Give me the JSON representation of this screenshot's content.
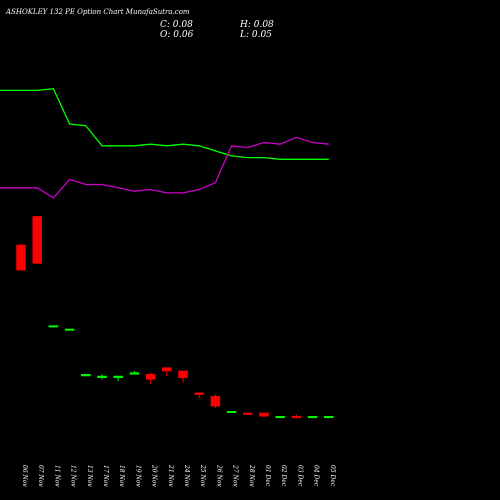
{
  "chart_data": {
    "type": "candlestick",
    "title": "ASHOKLEY 132  PE Option  Chart MunafaSutra.com",
    "ohlc_readout": {
      "c": "C: 0.08",
      "h": "H: 0.08",
      "o": "O: 0.06",
      "l": "L: 0.05"
    },
    "price_range": [
      0,
      2.5
    ],
    "candles": [
      {
        "date": "06 Nov",
        "open": 1.28,
        "high": 1.28,
        "low": 1.13,
        "close": 1.13,
        "dir": "down"
      },
      {
        "date": "07 Nov",
        "open": 1.45,
        "high": 1.45,
        "low": 1.17,
        "close": 1.17,
        "dir": "down"
      },
      {
        "date": "11 Nov",
        "open": 0.8,
        "high": 0.8,
        "low": 0.8,
        "close": 0.8,
        "dir": "up"
      },
      {
        "date": "12 Nov",
        "open": 0.78,
        "high": 0.78,
        "low": 0.78,
        "close": 0.78,
        "dir": "up"
      },
      {
        "date": "13 Nov",
        "open": 0.5,
        "high": 0.51,
        "low": 0.5,
        "close": 0.51,
        "dir": "up"
      },
      {
        "date": "17 Nov",
        "open": 0.49,
        "high": 0.51,
        "low": 0.48,
        "close": 0.5,
        "dir": "up"
      },
      {
        "date": "18 Nov",
        "open": 0.49,
        "high": 0.5,
        "low": 0.47,
        "close": 0.5,
        "dir": "up"
      },
      {
        "date": "19 Nov",
        "open": 0.51,
        "high": 0.53,
        "low": 0.51,
        "close": 0.52,
        "dir": "up"
      },
      {
        "date": "20 Nov",
        "open": 0.51,
        "high": 0.52,
        "low": 0.45,
        "close": 0.48,
        "dir": "down"
      },
      {
        "date": "21 Nov",
        "open": 0.55,
        "high": 0.55,
        "low": 0.5,
        "close": 0.53,
        "dir": "down"
      },
      {
        "date": "24 Nov",
        "open": 0.53,
        "high": 0.53,
        "low": 0.46,
        "close": 0.49,
        "dir": "down"
      },
      {
        "date": "25 Nov",
        "open": 0.4,
        "high": 0.4,
        "low": 0.37,
        "close": 0.39,
        "dir": "down"
      },
      {
        "date": "26 Nov",
        "open": 0.38,
        "high": 0.39,
        "low": 0.31,
        "close": 0.32,
        "dir": "down"
      },
      {
        "date": "27 Nov",
        "open": 0.29,
        "high": 0.29,
        "low": 0.28,
        "close": 0.29,
        "dir": "up"
      },
      {
        "date": "28 Nov",
        "open": 0.28,
        "high": 0.28,
        "low": 0.28,
        "close": 0.28,
        "dir": "down"
      },
      {
        "date": "01 Dec",
        "open": 0.28,
        "high": 0.28,
        "low": 0.26,
        "close": 0.26,
        "dir": "down"
      },
      {
        "date": "02 Dec",
        "open": 0.26,
        "high": 0.26,
        "low": 0.26,
        "close": 0.26,
        "dir": "up"
      },
      {
        "date": "03 Dec",
        "open": 0.26,
        "high": 0.27,
        "low": 0.25,
        "close": 0.26,
        "dir": "down"
      },
      {
        "date": "04 Dec",
        "open": 0.26,
        "high": 0.26,
        "low": 0.26,
        "close": 0.26,
        "dir": "up"
      },
      {
        "date": "05 Dec",
        "open": 0.26,
        "high": 0.26,
        "low": 0.25,
        "close": 0.26,
        "dir": "up"
      }
    ],
    "overlay_lines": [
      {
        "color": "#00ff00",
        "values": [
          2.2,
          2.2,
          2.21,
          2.0,
          1.99,
          1.87,
          1.87,
          1.87,
          1.88,
          1.87,
          1.88,
          1.87,
          1.84,
          1.81,
          1.8,
          1.8,
          1.79,
          1.79,
          1.79,
          1.79
        ]
      },
      {
        "color": "#cc00cc",
        "values": [
          1.62,
          1.62,
          1.56,
          1.67,
          1.64,
          1.64,
          1.62,
          1.6,
          1.61,
          1.59,
          1.59,
          1.61,
          1.65,
          1.87,
          1.86,
          1.89,
          1.88,
          1.92,
          1.89,
          1.88
        ]
      }
    ],
    "grid": false,
    "colors": {
      "background": "#000000",
      "up": "#00ff00",
      "down": "#ff0000",
      "text": "#ffffff"
    }
  }
}
